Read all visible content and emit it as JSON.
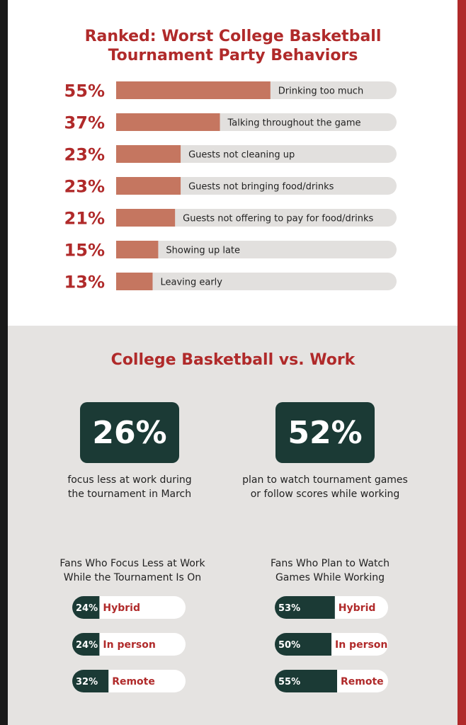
{
  "colors": {
    "accent_red": "#b02a2a",
    "bar_fill": "#c57660",
    "bar_track": "#e2e0de",
    "dark_green": "#1b3a35",
    "panel_gray": "#e5e3e1"
  },
  "ranked": {
    "title_line1": "Ranked: Worst College Basketball",
    "title_line2": "Tournament Party Behaviors"
  },
  "versus": {
    "title": "College Basketball vs. Work",
    "stat1": {
      "value": "26%",
      "line1": "focus less at work during",
      "line2": "the tournament in March"
    },
    "stat2": {
      "value": "52%",
      "line1": "plan to watch tournament games",
      "line2": "or follow scores while working"
    },
    "sub1": {
      "line1": "Fans Who Focus Less at Work",
      "line2": "While the Tournament Is On"
    },
    "sub2": {
      "line1": "Fans Who Plan to Watch",
      "line2": "Games While Working"
    }
  },
  "chart_data": [
    {
      "type": "bar",
      "orientation": "horizontal",
      "title": "Ranked: Worst College Basketball Tournament Party Behaviors",
      "categories": [
        "Drinking too much",
        "Talking throughout the game",
        "Guests not cleaning up",
        "Guests not bringing food/drinks",
        "Guests not offering to pay for food/drinks",
        "Showing up late",
        "Leaving early"
      ],
      "values": [
        55,
        37,
        23,
        23,
        21,
        15,
        13
      ],
      "labels": [
        "55%",
        "37%",
        "23%",
        "23%",
        "21%",
        "15%",
        "13%"
      ],
      "xlim": [
        0,
        100
      ]
    },
    {
      "type": "bar",
      "orientation": "horizontal",
      "title": "Fans Who Focus Less at Work While the Tournament Is On",
      "categories": [
        "Hybrid",
        "In person",
        "Remote"
      ],
      "values": [
        24,
        24,
        32
      ],
      "labels": [
        "24%",
        "24%",
        "32%"
      ],
      "xlim": [
        0,
        100
      ]
    },
    {
      "type": "bar",
      "orientation": "horizontal",
      "title": "Fans Who Plan to Watch Games While Working",
      "categories": [
        "Hybrid",
        "In person",
        "Remote"
      ],
      "values": [
        53,
        50,
        55
      ],
      "labels": [
        "53%",
        "50%",
        "55%"
      ],
      "xlim": [
        0,
        100
      ]
    }
  ]
}
